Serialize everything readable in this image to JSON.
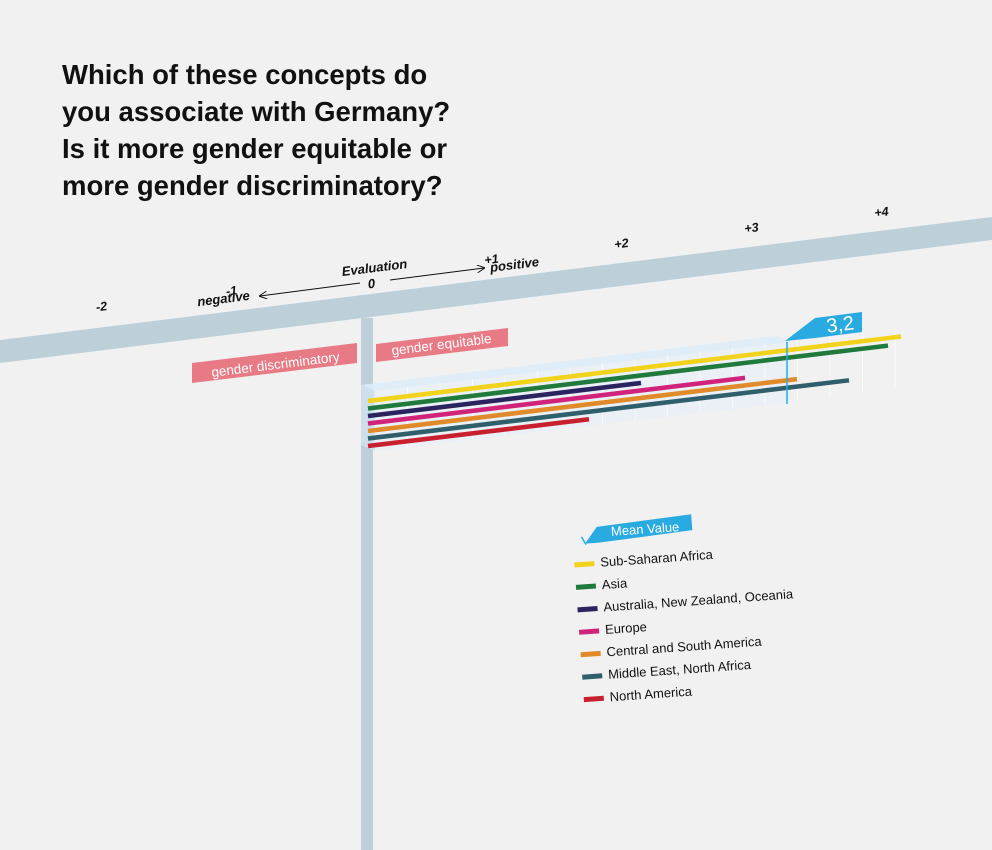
{
  "title_lines": [
    "Which of these concepts do",
    "you associate with Germany?",
    "Is it more gender equitable or",
    "more gender discriminatory?"
  ],
  "colors": {
    "axis_band": "#bdcfd9",
    "mean_accent": "#29abe2",
    "label_box": "#e87a86",
    "background": "#f1f1f1"
  },
  "chart_data": {
    "type": "bar",
    "title": "Which of these concepts do you associate with Germany? Is it more gender equitable or more gender discriminatory?",
    "axis": {
      "label": "Evaluation",
      "negative_label": "negative",
      "positive_label": "positive",
      "zero_label": "0",
      "range": [
        -2,
        4
      ],
      "ticks": [
        {
          "value": -2,
          "label": "-2"
        },
        {
          "value": -1,
          "label": "-1"
        },
        {
          "value": 1,
          "label": "+1"
        },
        {
          "value": 2,
          "label": "+2"
        },
        {
          "value": 3,
          "label": "+3"
        },
        {
          "value": 4,
          "label": "+4"
        }
      ]
    },
    "side_labels": {
      "negative": "gender discriminatory",
      "positive": "gender equitable"
    },
    "mean": {
      "value": 3.2,
      "label": "3,2",
      "legend_label": "Mean Value"
    },
    "series": [
      {
        "name": "Sub-Saharan Africa",
        "value": 4.1,
        "color": "#f2d31b"
      },
      {
        "name": "Asia",
        "value": 4.0,
        "color": "#1f7a3c"
      },
      {
        "name": "Australia, New Zealand, Oceania",
        "value": 2.1,
        "color": "#2a2360"
      },
      {
        "name": "Europe",
        "value": 2.9,
        "color": "#d1237a"
      },
      {
        "name": "Central and South America",
        "value": 3.3,
        "color": "#e08a2a"
      },
      {
        "name": "Middle East, North Africa",
        "value": 3.7,
        "color": "#2e5f6b"
      },
      {
        "name": "North America",
        "value": 1.7,
        "color": "#c8202e"
      }
    ]
  }
}
